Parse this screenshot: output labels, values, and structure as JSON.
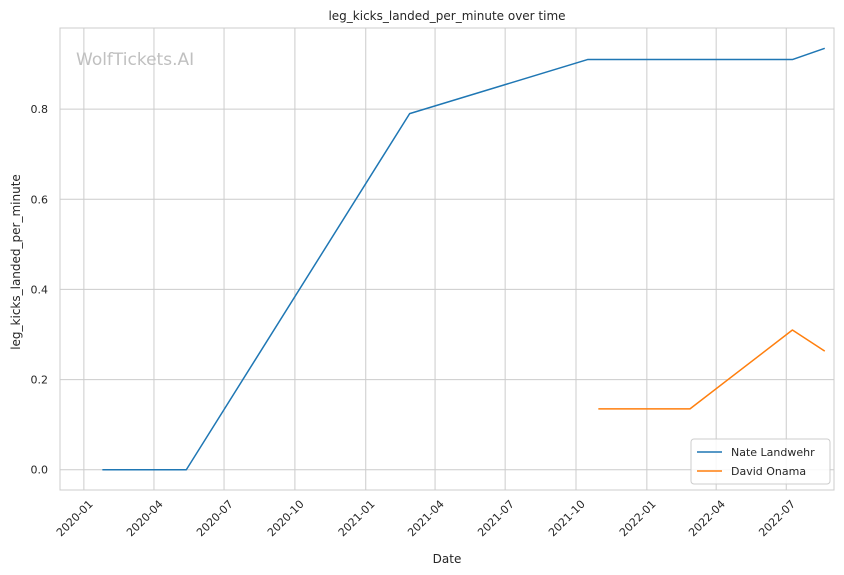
{
  "watermark": "WolfTickets.AI",
  "chart_data": {
    "type": "line",
    "title": "leg_kicks_landed_per_minute over time",
    "xlabel": "Date",
    "ylabel": "leg_kicks_landed_per_minute",
    "x_ticks": [
      "2020-01",
      "2020-04",
      "2020-07",
      "2020-10",
      "2021-01",
      "2021-04",
      "2021-07",
      "2021-10",
      "2022-01",
      "2022-04",
      "2022-07"
    ],
    "xlim": [
      "2019-12-01",
      "2022-09-01"
    ],
    "y_ticks": [
      0.0,
      0.2,
      0.4,
      0.6,
      0.8
    ],
    "ylim": [
      -0.045,
      0.98
    ],
    "grid": true,
    "legend_position": "lower-right",
    "series": [
      {
        "name": "Nate Landwehr",
        "color": "#1f77b4",
        "points": [
          {
            "x": "2020-01-25",
            "y": 0.0
          },
          {
            "x": "2020-05-13",
            "y": 0.0
          },
          {
            "x": "2021-02-27",
            "y": 0.79
          },
          {
            "x": "2021-10-16",
            "y": 0.91
          },
          {
            "x": "2022-07-09",
            "y": 0.91
          },
          {
            "x": "2022-08-20",
            "y": 0.935
          }
        ]
      },
      {
        "name": "David Onama",
        "color": "#ff7f0e",
        "points": [
          {
            "x": "2021-10-30",
            "y": 0.135
          },
          {
            "x": "2022-02-26",
            "y": 0.135
          },
          {
            "x": "2022-07-09",
            "y": 0.31
          },
          {
            "x": "2022-08-20",
            "y": 0.263
          }
        ]
      }
    ]
  }
}
